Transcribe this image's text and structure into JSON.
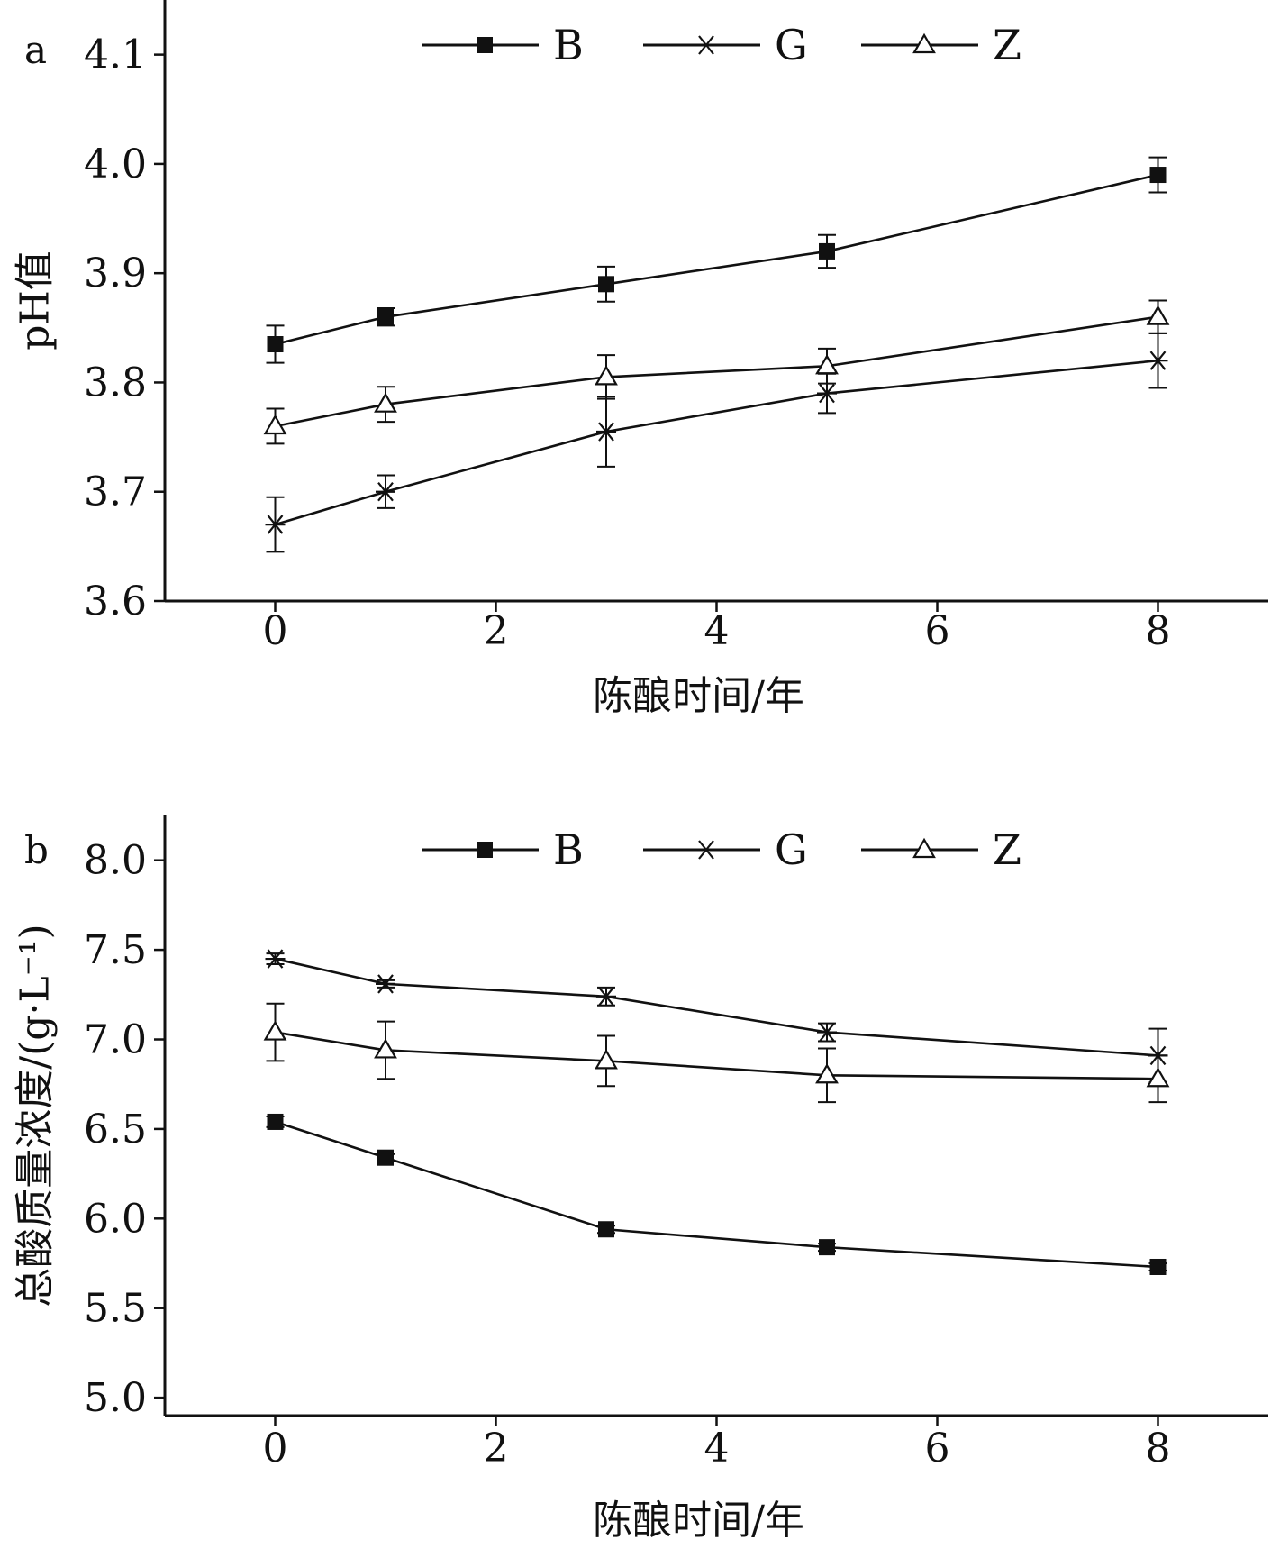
{
  "chart_data": [
    {
      "type": "line",
      "panel_label": "a",
      "xlabel": "陈酿时间/年",
      "ylabel": "pH值",
      "x": [
        0,
        1,
        3,
        5,
        8
      ],
      "xlim": [
        -1,
        9
      ],
      "ylim": [
        3.6,
        4.15
      ],
      "xticks": [
        0,
        2,
        4,
        6,
        8
      ],
      "xtick_labels": [
        "0",
        "2",
        "4",
        "6",
        "8"
      ],
      "yticks": [
        3.6,
        3.7,
        3.8,
        3.9,
        4.0,
        4.1
      ],
      "ytick_labels": [
        "3.6",
        "3.7",
        "3.8",
        "3.9",
        "4.0",
        "4.1"
      ],
      "legend_position": "top",
      "grid": false,
      "series": [
        {
          "name": "B",
          "marker": "square",
          "values": [
            3.835,
            3.86,
            3.89,
            3.92,
            3.99
          ],
          "errors": [
            0.017,
            0.008,
            0.016,
            0.015,
            0.016
          ]
        },
        {
          "name": "G",
          "marker": "asterisk",
          "values": [
            3.67,
            3.7,
            3.755,
            3.79,
            3.82
          ],
          "errors": [
            0.025,
            0.015,
            0.032,
            0.018,
            0.025
          ]
        },
        {
          "name": "Z",
          "marker": "triangle",
          "values": [
            3.76,
            3.78,
            3.805,
            3.815,
            3.86
          ],
          "errors": [
            0.016,
            0.016,
            0.02,
            0.016,
            0.015
          ]
        }
      ]
    },
    {
      "type": "line",
      "panel_label": "b",
      "xlabel": "陈酿时间/年",
      "ylabel": "总酸质量浓度/(g·L⁻¹)",
      "x": [
        0,
        1,
        3,
        5,
        8
      ],
      "xlim": [
        -1,
        9
      ],
      "ylim": [
        4.9,
        8.25
      ],
      "xticks": [
        0,
        2,
        4,
        6,
        8
      ],
      "xtick_labels": [
        "0",
        "2",
        "4",
        "6",
        "8"
      ],
      "yticks": [
        5.0,
        5.5,
        6.0,
        6.5,
        7.0,
        7.5,
        8.0
      ],
      "ytick_labels": [
        "5.0",
        "5.5",
        "6.0",
        "6.5",
        "7.0",
        "7.5",
        "8.0"
      ],
      "legend_position": "top",
      "grid": false,
      "series": [
        {
          "name": "B",
          "marker": "square",
          "values": [
            6.54,
            6.34,
            5.94,
            5.84,
            5.73
          ],
          "errors": [
            0.03,
            0.02,
            0.02,
            0.02,
            0.02
          ]
        },
        {
          "name": "G",
          "marker": "asterisk",
          "values": [
            7.45,
            7.31,
            7.24,
            7.04,
            6.91
          ],
          "errors": [
            0.03,
            0.02,
            0.05,
            0.05,
            0.15
          ]
        },
        {
          "name": "Z",
          "marker": "triangle",
          "values": [
            7.04,
            6.94,
            6.88,
            6.8,
            6.78
          ],
          "errors": [
            0.16,
            0.16,
            0.14,
            0.15,
            0.13
          ]
        }
      ]
    }
  ]
}
